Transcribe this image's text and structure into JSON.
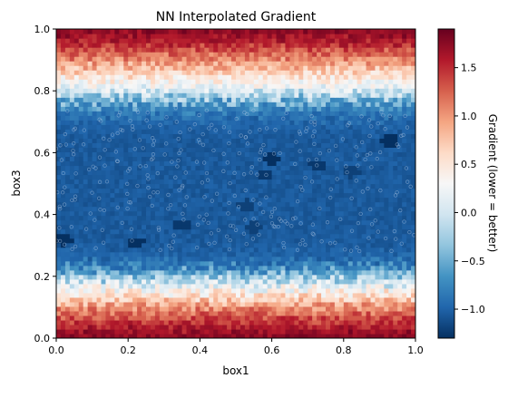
{
  "chart_data": {
    "type": "heatmap",
    "title": "NN Interpolated Gradient",
    "xlabel": "box1",
    "ylabel": "box3",
    "xlim": [
      0,
      1
    ],
    "ylim": [
      0,
      1
    ],
    "xticks": [
      0.0,
      0.2,
      0.4,
      0.6,
      0.8,
      1.0
    ],
    "xtick_labels": [
      "0.0",
      "0.2",
      "0.4",
      "0.6",
      "0.8",
      "1.0"
    ],
    "yticks": [
      0.0,
      0.2,
      0.4,
      0.6,
      0.8,
      1.0
    ],
    "ytick_labels": [
      "0.0",
      "0.2",
      "0.4",
      "0.6",
      "0.8",
      "1.0"
    ],
    "colormap": "RdBu_r",
    "colorbar": {
      "label": "Gradient (lower = better)",
      "range": [
        -1.3,
        1.9
      ],
      "ticks": [
        -1.0,
        -0.5,
        0.0,
        0.5,
        1.0,
        1.5
      ],
      "tick_labels": [
        "−1.0",
        "−0.5",
        "0.0",
        "0.5",
        "1.0",
        "1.5"
      ]
    },
    "value_profile_by_box3": {
      "box3": [
        0.0,
        0.05,
        0.1,
        0.15,
        0.2,
        0.25,
        0.3,
        0.35,
        0.4,
        0.5,
        0.6,
        0.65,
        0.7,
        0.75,
        0.8,
        0.85,
        0.9,
        0.95,
        1.0
      ],
      "gradient": [
        1.8,
        1.5,
        1.05,
        0.45,
        -0.35,
        -0.95,
        -1.05,
        -1.05,
        -1.05,
        -1.05,
        -1.05,
        -1.05,
        -1.0,
        -0.75,
        0.05,
        0.55,
        1.05,
        1.5,
        1.8
      ]
    },
    "dark_patches": [
      {
        "box1": 0.02,
        "box3": 0.32,
        "value": -1.3
      },
      {
        "box1": 0.22,
        "box3": 0.31,
        "value": -1.3
      },
      {
        "box1": 0.35,
        "box3": 0.37,
        "value": -1.25
      },
      {
        "box1": 0.53,
        "box3": 0.43,
        "value": -1.2
      },
      {
        "box1": 0.58,
        "box3": 0.53,
        "value": -1.25
      },
      {
        "box1": 0.6,
        "box3": 0.58,
        "value": -1.3
      },
      {
        "box1": 0.73,
        "box3": 0.56,
        "value": -1.25
      },
      {
        "box1": 0.82,
        "box3": 0.54,
        "value": -1.2
      },
      {
        "box1": 0.93,
        "box3": 0.64,
        "value": -1.3
      },
      {
        "box1": 0.55,
        "box3": 0.36,
        "value": -1.2
      }
    ],
    "sample_points": {
      "marker": "hollow-circle",
      "count_visible": "many",
      "box3_range": [
        0.28,
        0.75
      ]
    }
  }
}
